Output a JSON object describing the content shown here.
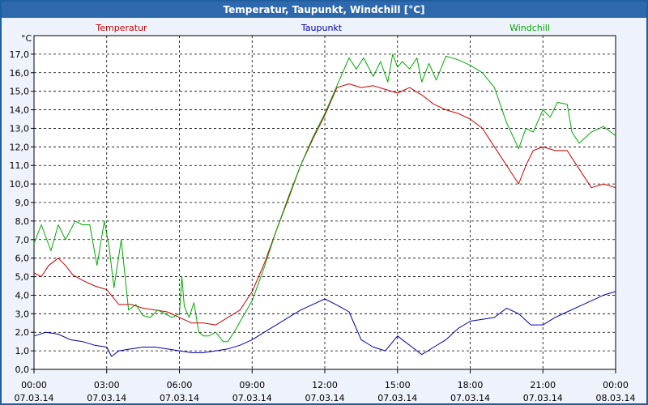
{
  "window": {
    "title": "Temperatur, Taupunkt, Windchill [°C]"
  },
  "chart_data": {
    "type": "line",
    "title": "Temperatur, Taupunkt, Windchill [°C]",
    "ylabel": "°C",
    "ylim": [
      0,
      18
    ],
    "xlim": [
      0,
      24
    ],
    "y_ticks": [
      "0,0",
      "1,0",
      "2,0",
      "3,0",
      "4,0",
      "5,0",
      "6,0",
      "7,0",
      "8,0",
      "9,0",
      "10,0",
      "11,0",
      "12,0",
      "13,0",
      "14,0",
      "15,0",
      "16,0",
      "17,0"
    ],
    "x_ticks": [
      {
        "time": "00:00",
        "date": "07.03.14"
      },
      {
        "time": "03:00",
        "date": "07.03.14"
      },
      {
        "time": "06:00",
        "date": "07.03.14"
      },
      {
        "time": "09:00",
        "date": "07.03.14"
      },
      {
        "time": "12:00",
        "date": "07.03.14"
      },
      {
        "time": "15:00",
        "date": "07.03.14"
      },
      {
        "time": "18:00",
        "date": "07.03.14"
      },
      {
        "time": "21:00",
        "date": "07.03.14"
      },
      {
        "time": "00:00",
        "date": "08.03.14"
      }
    ],
    "grid": true,
    "series": [
      {
        "name": "Temperatur",
        "color": "#cc0000",
        "x": [
          0,
          0.3,
          0.6,
          1,
          1.3,
          1.6,
          2,
          2.5,
          3,
          3.5,
          4,
          4.5,
          5,
          5.5,
          6,
          6.5,
          7,
          7.5,
          8,
          8.5,
          9,
          9.5,
          10,
          10.5,
          11,
          11.5,
          12,
          12.5,
          13,
          13.5,
          14,
          14.5,
          15,
          15.5,
          16,
          16.5,
          17,
          17.5,
          18,
          18.5,
          19,
          19.5,
          20,
          20.3,
          20.6,
          21,
          21.5,
          22,
          22.5,
          23,
          23.5,
          24
        ],
        "values": [
          5.2,
          5,
          5.6,
          6,
          5.6,
          5.1,
          4.8,
          4.5,
          4.3,
          3.5,
          3.5,
          3.3,
          3.2,
          3.1,
          2.8,
          2.5,
          2.5,
          2.4,
          2.8,
          3.2,
          4.2,
          5.7,
          7.5,
          9.2,
          11,
          12.4,
          13.7,
          15.2,
          15.4,
          15.2,
          15.3,
          15.1,
          14.9,
          15.2,
          14.8,
          14.3,
          14,
          13.8,
          13.5,
          13,
          12,
          11,
          10,
          11,
          11.8,
          12,
          11.8,
          11.8,
          10.8,
          9.8,
          10,
          9.8
        ]
      },
      {
        "name": "Taupunkt",
        "color": "#0000aa",
        "x": [
          0,
          0.5,
          1,
          1.5,
          2,
          2.5,
          3,
          3.2,
          3.5,
          4,
          4.5,
          5,
          5.5,
          6,
          6.5,
          7,
          7.5,
          8,
          8.5,
          9,
          9.5,
          10,
          10.5,
          11,
          11.5,
          12,
          12.3,
          12.6,
          13,
          13.5,
          14,
          14.5,
          15,
          15.3,
          15.6,
          16,
          16.5,
          17,
          17.5,
          18,
          18.5,
          19,
          19.5,
          20,
          20.5,
          21,
          21.5,
          22,
          22.5,
          23,
          23.5,
          24
        ],
        "values": [
          1.8,
          2,
          1.9,
          1.6,
          1.5,
          1.3,
          1.2,
          0.7,
          1,
          1.1,
          1.2,
          1.2,
          1.1,
          1,
          0.9,
          0.9,
          1,
          1.1,
          1.3,
          1.6,
          2,
          2.4,
          2.8,
          3.2,
          3.5,
          3.8,
          3.6,
          3.4,
          3.1,
          1.6,
          1.2,
          1,
          1.8,
          1.5,
          1.2,
          0.8,
          1.2,
          1.6,
          2.2,
          2.6,
          2.7,
          2.8,
          3.3,
          3,
          2.4,
          2.4,
          2.8,
          3.1,
          3.4,
          3.7,
          4,
          4.2
        ]
      },
      {
        "name": "Windchill",
        "color": "#00aa00",
        "x": [
          0,
          0.3,
          0.7,
          1,
          1.3,
          1.7,
          2,
          2.3,
          2.6,
          2.9,
          3.1,
          3.3,
          3.6,
          3.9,
          4.2,
          4.5,
          4.8,
          5.1,
          5.4,
          5.7,
          6,
          6.1,
          6.2,
          6.4,
          6.6,
          6.8,
          7,
          7.2,
          7.5,
          7.8,
          8,
          8.3,
          8.6,
          9,
          9.5,
          10,
          10.5,
          11,
          11.5,
          12,
          12.5,
          13,
          13.3,
          13.6,
          14,
          14.3,
          14.6,
          14.8,
          15,
          15.2,
          15.5,
          15.8,
          16,
          16.3,
          16.6,
          17,
          17.5,
          18,
          18.5,
          19,
          19.5,
          20,
          20.3,
          20.6,
          21,
          21.3,
          21.6,
          22,
          22.2,
          22.5,
          23,
          23.5,
          24
        ],
        "values": [
          6.8,
          7.8,
          6.4,
          7.8,
          7,
          8,
          7.8,
          7.8,
          5.6,
          8,
          6.6,
          4.4,
          7,
          3.2,
          3.5,
          2.9,
          2.8,
          3.2,
          3,
          2.8,
          3,
          5,
          3.4,
          2.8,
          3.6,
          2,
          1.8,
          1.8,
          2,
          1.5,
          1.5,
          2.1,
          2.8,
          3.7,
          5.5,
          7.5,
          9.3,
          11,
          12.5,
          13.8,
          15.3,
          16.8,
          16.2,
          16.8,
          15.8,
          16.6,
          15.5,
          17,
          16.3,
          16.6,
          16.2,
          16.8,
          15.5,
          16.5,
          15.6,
          16.9,
          16.7,
          16.4,
          16,
          15.2,
          13.3,
          11.9,
          13,
          12.8,
          14,
          13.6,
          14.4,
          14.3,
          12.8,
          12.2,
          12.8,
          13.1,
          12.6
        ]
      }
    ]
  }
}
